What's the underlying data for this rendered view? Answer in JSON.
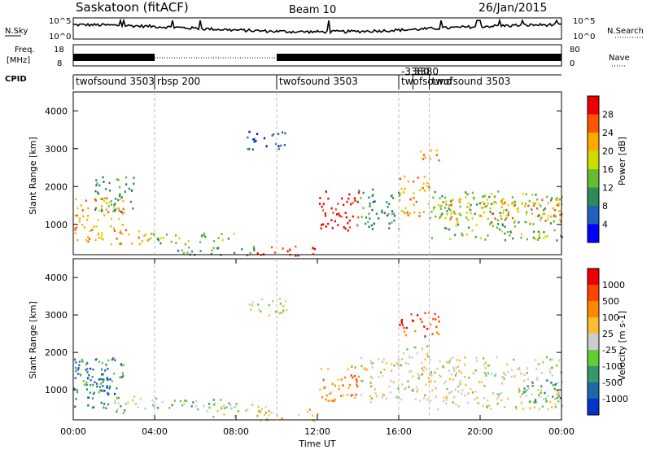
{
  "header": {
    "station": "Saskatoon (fitACF)",
    "beam": "Beam 10",
    "date": "26/Jan/2015"
  },
  "strips": {
    "nsky_label": "N.Sky",
    "nsky_ticks": [
      "10^5",
      "10^0"
    ],
    "nsearch_label": "N.Search",
    "nsearch_ticks": [
      "10^5",
      "10^0"
    ],
    "freq_label": "Freq.",
    "freq_unit": "[MHz]",
    "freq_ticks": [
      "18",
      "8"
    ],
    "nave_label": "Nave",
    "nave_ticks": [
      "80",
      "0"
    ],
    "cpid_label": "CPID",
    "cpid_segments": [
      {
        "label": "twofsound 3503",
        "start": 0.0,
        "end": 4.0
      },
      {
        "label": "rbsp 200",
        "start": 4.0,
        "end": 10.0
      },
      {
        "label": "twofsound 3503",
        "start": 10.0,
        "end": 16.0
      },
      {
        "label": "-3380",
        "start": 16.0,
        "end": 16.7
      },
      {
        "label": "3380",
        "start": 16.7,
        "end": 17.5
      },
      {
        "label": "twofsound",
        "start": 16.0,
        "end": 17.5
      },
      {
        "label": "twofsound 3503",
        "start": 17.5,
        "end": 24.0
      }
    ]
  },
  "chart_data": [
    {
      "type": "heatmap",
      "name": "power",
      "xlabel": "",
      "ylabel": "Slant Range [km]",
      "xlim": [
        0,
        24
      ],
      "ylim": [
        200,
        4500
      ],
      "yticks": [
        "1000",
        "2000",
        "3000",
        "4000"
      ],
      "colorbar_label": "Power [dB]",
      "colorbar_ticks": [
        "28",
        "24",
        "20",
        "16",
        "12",
        "8",
        "4"
      ],
      "colors": [
        "#0000ff",
        "#2060c0",
        "#2e8b57",
        "#66bb33",
        "#ccdd00",
        "#ffaa00",
        "#ff5500",
        "#ee0000"
      ],
      "regions": [
        {
          "x0": 0.0,
          "x1": 2.5,
          "y0": 500,
          "y1": 1800,
          "level": 5
        },
        {
          "x0": 2.0,
          "x1": 3.8,
          "y0": 500,
          "y1": 900,
          "level": 5
        },
        {
          "x0": 1.0,
          "x1": 3.0,
          "y0": 1300,
          "y1": 2300,
          "level": 2
        },
        {
          "x0": 3.8,
          "x1": 8.0,
          "y0": 500,
          "y1": 800,
          "level": 3
        },
        {
          "x0": 5.0,
          "x1": 9.0,
          "y0": 200,
          "y1": 450,
          "level": 2
        },
        {
          "x0": 9.0,
          "x1": 12.0,
          "y0": 200,
          "y1": 450,
          "level": 7
        },
        {
          "x0": 8.5,
          "x1": 10.5,
          "y0": 3000,
          "y1": 3500,
          "level": 1
        },
        {
          "x0": 12.0,
          "x1": 14.0,
          "y0": 800,
          "y1": 1900,
          "level": 7
        },
        {
          "x0": 14.0,
          "x1": 16.0,
          "y0": 900,
          "y1": 2000,
          "level": 2
        },
        {
          "x0": 16.0,
          "x1": 17.5,
          "y0": 1200,
          "y1": 2300,
          "level": 5
        },
        {
          "x0": 17.0,
          "x1": 18.0,
          "y0": 2600,
          "y1": 3000,
          "level": 5
        },
        {
          "x0": 17.5,
          "x1": 24.0,
          "y0": 600,
          "y1": 1900,
          "level": 3
        },
        {
          "x0": 18.0,
          "x1": 24.0,
          "y0": 1100,
          "y1": 1700,
          "level": 5
        }
      ]
    },
    {
      "type": "heatmap",
      "name": "velocity",
      "xlabel": "Time UT",
      "ylabel": "Slant Range [km]",
      "xlim": [
        0,
        24
      ],
      "ylim": [
        200,
        4500
      ],
      "xticks": [
        "00:00",
        "04:00",
        "08:00",
        "12:00",
        "16:00",
        "20:00",
        "00:00"
      ],
      "yticks": [
        "1000",
        "2000",
        "3000",
        "4000"
      ],
      "colorbar_label": "Velocity [m s-1]",
      "colorbar_ticks": [
        "1000",
        "500",
        "100",
        "25",
        "-25",
        "-100",
        "-500",
        "-1000"
      ],
      "colors": [
        "#ee0000",
        "#ff4400",
        "#ff8800",
        "#ffbb33",
        "#cccccc",
        "#66cc33",
        "#339966",
        "#2266aa",
        "#0033cc"
      ],
      "regions": [
        {
          "x0": 0.0,
          "x1": 2.5,
          "y0": 400,
          "y1": 1900,
          "level": 6
        },
        {
          "x0": 0.5,
          "x1": 2.0,
          "y0": 800,
          "y1": 1600,
          "level": 7
        },
        {
          "x0": 2.0,
          "x1": 4.0,
          "y0": 500,
          "y1": 900,
          "level": 4
        },
        {
          "x0": 3.8,
          "x1": 8.0,
          "y0": 500,
          "y1": 800,
          "level": 5
        },
        {
          "x0": 6.5,
          "x1": 9.5,
          "y0": 300,
          "y1": 650,
          "level": 4
        },
        {
          "x0": 9.0,
          "x1": 12.0,
          "y0": 200,
          "y1": 500,
          "level": 3
        },
        {
          "x0": 8.5,
          "x1": 10.5,
          "y0": 3000,
          "y1": 3500,
          "level": 4
        },
        {
          "x0": 12.0,
          "x1": 14.0,
          "y0": 700,
          "y1": 1700,
          "level": 2
        },
        {
          "x0": 14.0,
          "x1": 16.0,
          "y0": 700,
          "y1": 1900,
          "level": 4
        },
        {
          "x0": 16.0,
          "x1": 18.0,
          "y0": 2400,
          "y1": 3100,
          "level": 1
        },
        {
          "x0": 16.0,
          "x1": 17.5,
          "y0": 700,
          "y1": 2200,
          "level": 4
        },
        {
          "x0": 17.5,
          "x1": 24.0,
          "y0": 500,
          "y1": 1900,
          "level": 4
        },
        {
          "x0": 22.0,
          "x1": 24.0,
          "y0": 700,
          "y1": 1300,
          "level": 6
        }
      ]
    }
  ],
  "vlines": [
    4.0,
    10.0,
    16.0,
    17.5
  ]
}
